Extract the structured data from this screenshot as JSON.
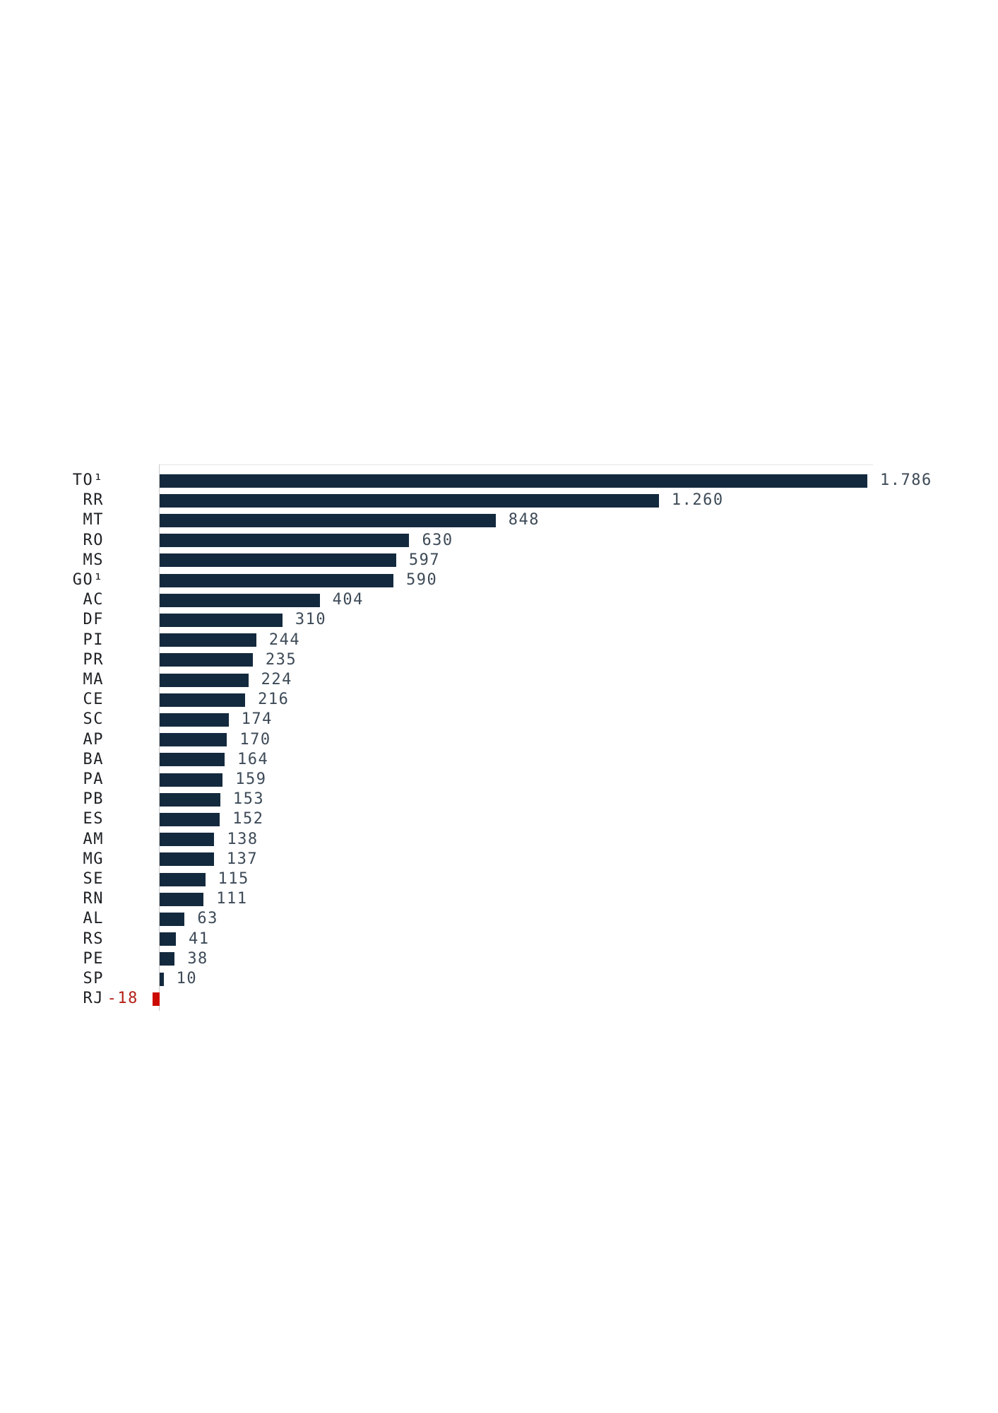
{
  "chart_data": {
    "type": "bar",
    "orientation": "horizontal",
    "title": "",
    "xlabel": "",
    "ylabel": "",
    "grid": false,
    "legend": null,
    "xlim": [
      0,
      1800
    ],
    "categories": [
      "TO¹",
      "RR",
      "MT",
      "RO",
      "MS",
      "GO¹",
      "AC",
      "DF",
      "PI",
      "PR",
      "MA",
      "CE",
      "SC",
      "AP",
      "BA",
      "PA",
      "PB",
      "ES",
      "AM",
      "MG",
      "SE",
      "RN",
      "AL",
      "RS",
      "PE",
      "SP",
      "RJ"
    ],
    "values": [
      1786,
      1260,
      848,
      630,
      597,
      590,
      404,
      310,
      244,
      235,
      224,
      216,
      174,
      170,
      164,
      159,
      153,
      152,
      138,
      137,
      115,
      111,
      63,
      41,
      38,
      10,
      -18
    ],
    "value_labels": [
      "1.786",
      "1.260",
      "848",
      "630",
      "597",
      "590",
      "404",
      "310",
      "244",
      "235",
      "224",
      "216",
      "174",
      "170",
      "164",
      "159",
      "153",
      "152",
      "138",
      "137",
      "115",
      "111",
      "63",
      "41",
      "38",
      "10",
      "-18"
    ],
    "colors": {
      "positive_bar": "#13293e",
      "negative_bar": "#cc0b00",
      "category_label": "#1e2124",
      "value_label": "#3d4a57",
      "negative_value_label": "#b32017",
      "axis_line": "#c9c9c9",
      "top_border": "#e4e4e4",
      "background": "#ffffff"
    }
  }
}
